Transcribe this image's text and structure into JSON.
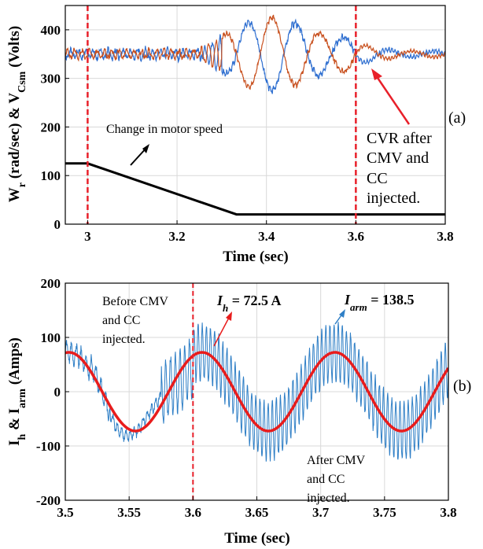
{
  "chart_data": [
    {
      "type": "line",
      "panel_tag": "(a)",
      "xlabel": "Time (sec)",
      "ylabel": {
        "main": "W",
        "sub1": "r",
        "mid": " (rad/sec) & V",
        "sub2": "Csm",
        "tail": " (Volts)"
      },
      "xlim": [
        2.95,
        3.8
      ],
      "ylim": [
        0,
        450
      ],
      "xticks": [
        "3",
        "3.2",
        "3.4",
        "3.6",
        "3.8"
      ],
      "xtick_values": [
        3.0,
        3.2,
        3.4,
        3.6,
        3.8
      ],
      "yticks": [
        "0",
        "100",
        "200",
        "300",
        "400"
      ],
      "ytick_values": [
        0,
        100,
        200,
        300,
        400
      ],
      "grid": true,
      "colors": {
        "blue": "#2f6fd0",
        "orange": "#c8501e",
        "black": "#000000",
        "marker": "#e8202a"
      },
      "vlines": [
        3.0,
        3.6
      ],
      "series": [
        {
          "color": "#2f6fd0",
          "description": "Capacitor voltage (ripple around 350 V, ±~55 V during speed change)",
          "x": [
            2.95,
            3.0,
            3.1,
            3.2,
            3.3,
            3.35,
            3.4,
            3.45,
            3.5,
            3.55,
            3.6,
            3.65,
            3.7,
            3.8
          ],
          "y": [
            350,
            350,
            350,
            352,
            340,
            305,
            320,
            300,
            310,
            300,
            320,
            345,
            350,
            350
          ]
        },
        {
          "color": "#c8501e",
          "description": "Capacitor voltage (second arm)",
          "x": [
            2.95,
            3.0,
            3.1,
            3.2,
            3.3,
            3.35,
            3.4,
            3.45,
            3.5,
            3.55,
            3.6,
            3.65,
            3.7,
            3.8
          ],
          "y": [
            345,
            345,
            348,
            350,
            370,
            425,
            410,
            420,
            415,
            410,
            370,
            352,
            350,
            348
          ]
        },
        {
          "color": "#000000",
          "description": "Motor speed W_r",
          "x": [
            2.95,
            3.0,
            3.333,
            3.8
          ],
          "y": [
            125,
            125,
            20,
            20
          ]
        }
      ],
      "annotations": {
        "speed_change": "Change in motor speed",
        "cvr_lines": [
          "CVR after",
          "CMV and",
          "CC",
          "injected."
        ]
      }
    },
    {
      "type": "line",
      "panel_tag": "(b)",
      "xlabel": "Time (sec)",
      "ylabel": {
        "main": "I",
        "sub1": "h",
        "mid": " & I",
        "sub2": "arm",
        "tail": " (Amps)"
      },
      "xlim": [
        3.5,
        3.8
      ],
      "ylim": [
        -200,
        200
      ],
      "xticks": [
        "3.5",
        "3.55",
        "3.6",
        "3.65",
        "3.7",
        "3.75",
        "3.8"
      ],
      "xtick_values": [
        3.5,
        3.55,
        3.6,
        3.65,
        3.7,
        3.75,
        3.8
      ],
      "yticks": [
        "-200",
        "-100",
        "0",
        "100",
        "200"
      ],
      "ytick_values": [
        -200,
        -100,
        0,
        100,
        200
      ],
      "grid": true,
      "vlines": [
        3.6
      ],
      "series": [
        {
          "color": "#e81c1c",
          "description": "I_h sinusoid, 72.5 A amplitude, ~9.5 Hz",
          "amplitude": 72.5,
          "frequency_hz": 9.6,
          "phase_peak_time": 3.607
        },
        {
          "color": "#2f7fc6",
          "description": "Arm current with high-frequency ripple, peak 138.5",
          "peak": 138.5
        }
      ],
      "annotations": {
        "before_lines": [
          "Before CMV",
          "and CC",
          "injected."
        ],
        "ih_label": "I",
        "ih_sub": "h",
        "ih_value": " = 72.5 A",
        "iarm_label": "I",
        "iarm_sub": "arm",
        "iarm_value": " = 138.5",
        "after_lines": [
          "After CMV",
          "and CC",
          "injected."
        ]
      }
    }
  ]
}
